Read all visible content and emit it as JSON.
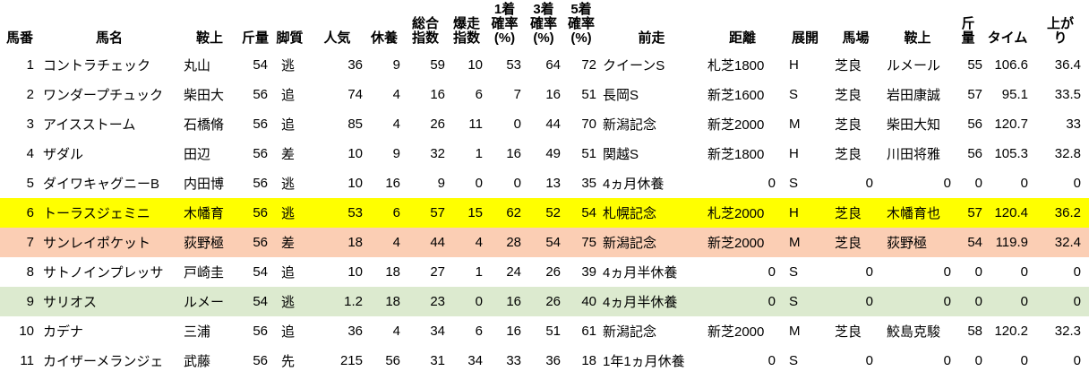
{
  "table": {
    "highlight_colors": {
      "none": "#ffffff",
      "yellow": "#ffff00",
      "salmon": "#fbceb4",
      "green": "#dceacf"
    },
    "columns": [
      {
        "key": "umaban",
        "label": "馬番"
      },
      {
        "key": "bamei",
        "label": "馬名"
      },
      {
        "key": "anjo",
        "label": "鞍上"
      },
      {
        "key": "kinryo",
        "label": "斤量"
      },
      {
        "key": "kyakushitsu",
        "label": "脚質"
      },
      {
        "key": "ninki",
        "label": "人気"
      },
      {
        "key": "kyuyo",
        "label": "休養"
      },
      {
        "key": "sogo-shisu",
        "label": "総合\n指数"
      },
      {
        "key": "bakuso-shisu",
        "label": "爆走\n指数"
      },
      {
        "key": "p1-kakuritsu",
        "label": "1着\n確率\n(%)"
      },
      {
        "key": "p3-kakuritsu",
        "label": "3着\n確率\n(%)"
      },
      {
        "key": "p5-kakuritsu",
        "label": "5着\n確率\n(%)"
      },
      {
        "key": "zenso",
        "label": "前走"
      },
      {
        "key": "kyori",
        "label": "距離"
      },
      {
        "key": "tenkai",
        "label": "展開"
      },
      {
        "key": "baba",
        "label": "馬場"
      },
      {
        "key": "anjo-zenso",
        "label": "鞍上"
      },
      {
        "key": "kinryo-zenso",
        "label": "斤\n量"
      },
      {
        "key": "time",
        "label": "タイム"
      },
      {
        "key": "agari",
        "label": "上が\nり"
      }
    ],
    "rows": [
      {
        "highlight": "none",
        "cells": [
          "1",
          "コントラチェック",
          "丸山",
          "54",
          "逃",
          "36",
          "9",
          "59",
          "10",
          "53",
          "64",
          "72",
          "クイーンS",
          "札芝1800",
          "H",
          "芝良",
          "ルメール",
          "55",
          "106.6",
          "36.4"
        ]
      },
      {
        "highlight": "none",
        "cells": [
          "2",
          "ワンダープチュック",
          "柴田大",
          "56",
          "追",
          "74",
          "4",
          "16",
          "6",
          "7",
          "16",
          "51",
          "長岡S",
          "新芝1600",
          "S",
          "芝良",
          "岩田康誠",
          "57",
          "95.1",
          "33.5"
        ]
      },
      {
        "highlight": "none",
        "cells": [
          "3",
          "アイスストーム",
          "石橋脩",
          "56",
          "追",
          "85",
          "4",
          "26",
          "11",
          "0",
          "44",
          "70",
          "新潟記念",
          "新芝2000",
          "M",
          "芝良",
          "柴田大知",
          "56",
          "120.7",
          "33"
        ]
      },
      {
        "highlight": "none",
        "cells": [
          "4",
          "ザダル",
          "田辺",
          "56",
          "差",
          "10",
          "9",
          "32",
          "1",
          "16",
          "49",
          "51",
          "関越S",
          "新芝1800",
          "H",
          "芝良",
          "川田将雅",
          "56",
          "105.3",
          "32.8"
        ]
      },
      {
        "highlight": "none",
        "cells": [
          "5",
          "ダイワキャグニーB",
          "内田博",
          "56",
          "逃",
          "10",
          "16",
          "9",
          "0",
          "0",
          "13",
          "35",
          "4ヵ月休養",
          "0",
          "S",
          "0",
          "0",
          "0",
          "0",
          "0"
        ]
      },
      {
        "highlight": "yellow",
        "cells": [
          "6",
          "トーラスジェミニ",
          "木幡育",
          "56",
          "逃",
          "53",
          "6",
          "57",
          "15",
          "62",
          "52",
          "54",
          "札幌記念",
          "札芝2000",
          "H",
          "芝良",
          "木幡育也",
          "57",
          "120.4",
          "36.2"
        ]
      },
      {
        "highlight": "salmon",
        "cells": [
          "7",
          "サンレイポケット",
          "荻野極",
          "56",
          "差",
          "18",
          "4",
          "44",
          "4",
          "28",
          "54",
          "75",
          "新潟記念",
          "新芝2000",
          "M",
          "芝良",
          "荻野極",
          "54",
          "119.9",
          "32.4"
        ]
      },
      {
        "highlight": "none",
        "cells": [
          "8",
          "サトノインプレッサ",
          "戸崎圭",
          "54",
          "追",
          "10",
          "18",
          "27",
          "1",
          "24",
          "26",
          "39",
          "4ヵ月半休養",
          "0",
          "S",
          "0",
          "0",
          "0",
          "0",
          "0"
        ]
      },
      {
        "highlight": "green",
        "cells": [
          "9",
          "サリオス",
          "ルメー",
          "54",
          "逃",
          "1.2",
          "18",
          "23",
          "0",
          "16",
          "26",
          "40",
          "4ヵ月半休養",
          "0",
          "S",
          "0",
          "0",
          "0",
          "0",
          "0"
        ]
      },
      {
        "highlight": "none",
        "cells": [
          "10",
          "カデナ",
          "三浦",
          "56",
          "追",
          "36",
          "4",
          "34",
          "6",
          "16",
          "51",
          "61",
          "新潟記念",
          "新芝2000",
          "M",
          "芝良",
          "鮫島克駿",
          "58",
          "120.2",
          "32.3"
        ]
      },
      {
        "highlight": "none",
        "cells": [
          "11",
          "カイザーメランジェ",
          "武藤",
          "56",
          "先",
          "215",
          "56",
          "31",
          "34",
          "33",
          "36",
          "18",
          "1年1ヵ月休養",
          "0",
          "S",
          "0",
          "0",
          "0",
          "0",
          "0"
        ]
      }
    ]
  }
}
